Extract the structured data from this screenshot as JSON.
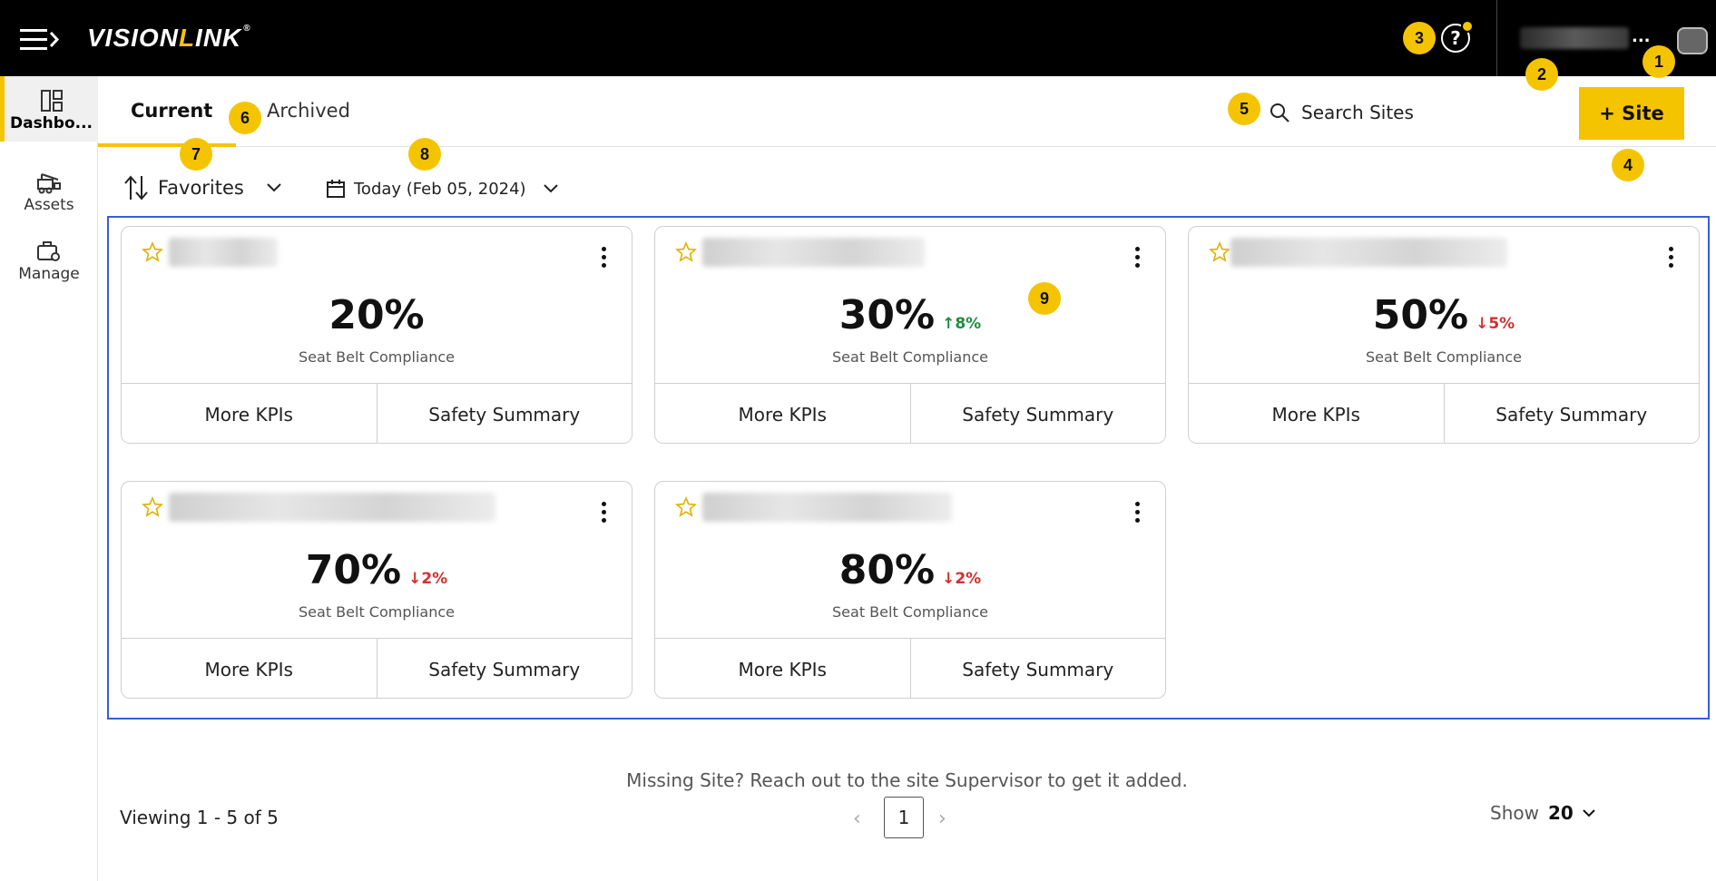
{
  "header": {
    "logo_text_a": "VISIO",
    "logo_text_n": "N",
    "logo_text_l": "L",
    "logo_text_ink": "INK",
    "logo_mark": "®",
    "help_icon": "help-circle-icon",
    "account_ellipsis": "..."
  },
  "sidebar": {
    "items": [
      {
        "label": "Dashbo...",
        "icon": "dashboard-icon",
        "active": true
      },
      {
        "label": "Assets",
        "icon": "assets-icon",
        "active": false
      },
      {
        "label": "Manage",
        "icon": "manage-icon",
        "active": false
      }
    ]
  },
  "tabs": {
    "current": "Current",
    "archived": "Archived"
  },
  "search": {
    "placeholder": "Search Sites"
  },
  "add_site": {
    "label": "+ Site"
  },
  "filters": {
    "sort_label": "Favorites",
    "date_label": "Today (Feb 05, 2024)"
  },
  "cards": [
    {
      "kpi": "20%",
      "trend": "",
      "trend_dir": "",
      "label": "Seat Belt Compliance",
      "more": "More KPIs",
      "summary": "Safety Summary"
    },
    {
      "kpi": "30%",
      "trend": "8%",
      "trend_dir": "up",
      "label": "Seat Belt Compliance",
      "more": "More KPIs",
      "summary": "Safety Summary"
    },
    {
      "kpi": "50%",
      "trend": "5%",
      "trend_dir": "down",
      "label": "Seat Belt Compliance",
      "more": "More KPIs",
      "summary": "Safety Summary"
    },
    {
      "kpi": "70%",
      "trend": "2%",
      "trend_dir": "down",
      "label": "Seat Belt Compliance",
      "more": "More KPIs",
      "summary": "Safety Summary"
    },
    {
      "kpi": "80%",
      "trend": "2%",
      "trend_dir": "down",
      "label": "Seat Belt Compliance",
      "more": "More KPIs",
      "summary": "Safety Summary"
    }
  ],
  "footer": {
    "missing": "Missing Site? Reach out to the site Supervisor to get it added.",
    "viewing": "Viewing 1 - 5 of 5",
    "page": "1",
    "show_label": "Show",
    "show_value": "20"
  },
  "markers": [
    "1",
    "2",
    "3",
    "4",
    "5",
    "6",
    "7",
    "8",
    "9"
  ],
  "colors": {
    "accent": "#f5c400",
    "trend_up": "#1e8e3e",
    "trend_down": "#d32f2f",
    "highlight_border": "#3b5bdb"
  }
}
